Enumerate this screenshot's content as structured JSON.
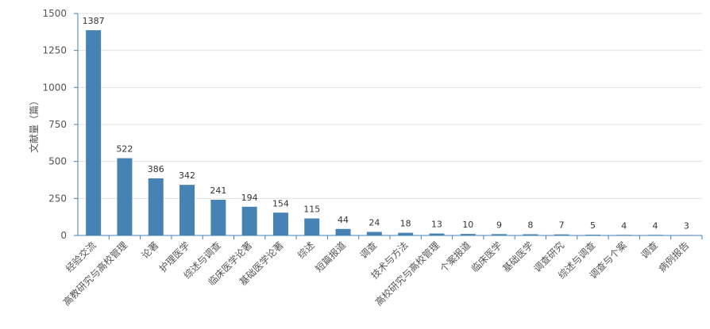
{
  "colors": {
    "bar": "#4682b4",
    "axis": "#4682b4",
    "grid": "#e0e0e0"
  },
  "chart_data": {
    "type": "bar",
    "title": "",
    "xlabel": "",
    "ylabel": "文献量（篇）",
    "ylim": [
      0,
      1500
    ],
    "yticks": [
      0,
      250,
      500,
      750,
      1000,
      1250,
      1500
    ],
    "grid": true,
    "categories": [
      "经验交流",
      "高教研究与高校管理",
      "论著",
      "护理医学",
      "综述与调查",
      "临床医学论著",
      "基础医学论著",
      "综述",
      "短篇报道",
      "调查",
      "技术与方法",
      "高校研究与高校管理",
      "个案报道",
      "临床医学",
      "基础医学",
      "调查研究",
      "综述与调查",
      "调查与个案",
      "调查",
      "病例报告"
    ],
    "values": [
      1387,
      522,
      386,
      342,
      241,
      194,
      154,
      115,
      44,
      24,
      18,
      13,
      10,
      9,
      8,
      7,
      5,
      4,
      4,
      3
    ],
    "value_labels": [
      "1387",
      "522",
      "386",
      "342",
      "241",
      "194",
      "154",
      "115",
      "44",
      "24",
      "18",
      "13",
      "10",
      "9",
      "8",
      "7",
      "5",
      "4",
      "4",
      "3"
    ],
    "ytick_labels": [
      "0",
      "250",
      "500",
      "750",
      "1000",
      "1250",
      "1500"
    ]
  }
}
